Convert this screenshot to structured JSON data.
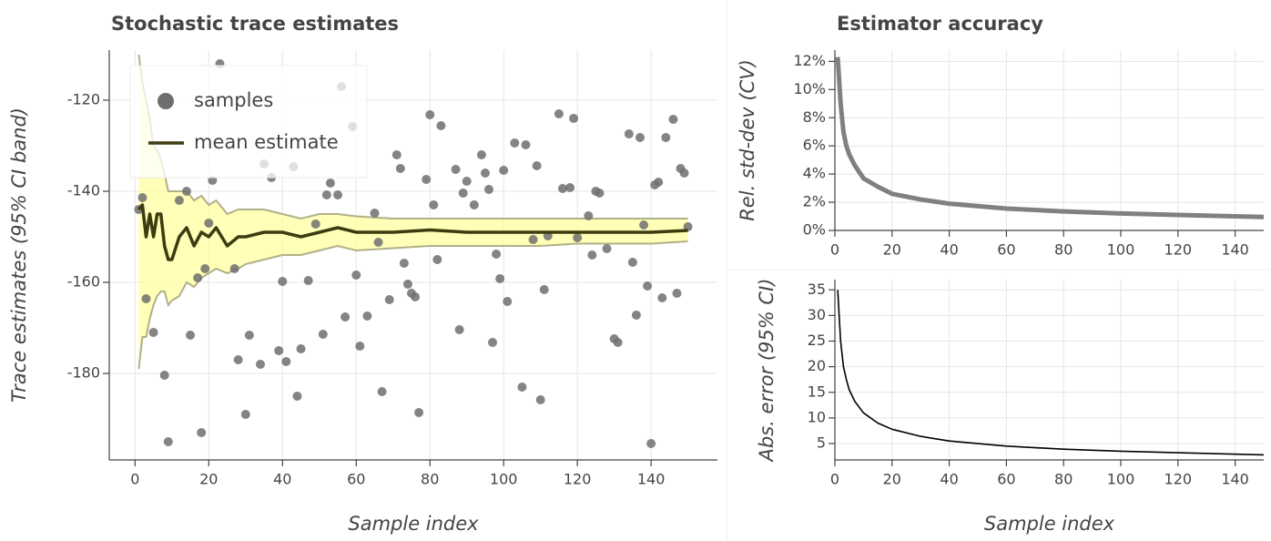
{
  "chart_data": [
    {
      "type": "scatter",
      "title": "Stochastic trace estimates",
      "xlabel": "Sample index",
      "ylabel": "Trace estimates (95% CI band)",
      "xlim": [
        -7,
        158
      ],
      "ylim": [
        -199,
        -109
      ],
      "xticks": [
        0,
        20,
        40,
        60,
        80,
        100,
        120,
        140
      ],
      "yticks": [
        -180,
        -160,
        -140,
        -120
      ],
      "grid": true,
      "legend": "top_left",
      "series": [
        {
          "name": "samples",
          "color": "#6e6e6e",
          "x": [
            1,
            2,
            3,
            5,
            8,
            9,
            12,
            14,
            15,
            17,
            18,
            19,
            20,
            21,
            23,
            27,
            28,
            30,
            31,
            34,
            35,
            37,
            39,
            40,
            41,
            43,
            44,
            45,
            47,
            49,
            51,
            52,
            53,
            55,
            56,
            57,
            59,
            60,
            61,
            63,
            65,
            66,
            67,
            69,
            71,
            72,
            73,
            74,
            75,
            76,
            77,
            79,
            80,
            81,
            82,
            83,
            87,
            88,
            89,
            90,
            92,
            94,
            95,
            96,
            97,
            98,
            99,
            100,
            101,
            103,
            105,
            106,
            108,
            109,
            110,
            111,
            112,
            115,
            116,
            118,
            119,
            120,
            123,
            124,
            125,
            126,
            128,
            130,
            131,
            134,
            135,
            136,
            137,
            138,
            139,
            140,
            141,
            142,
            143,
            144,
            146,
            147,
            148,
            149,
            150
          ],
          "values": [
            -144,
            -141.4,
            -163.6,
            -171,
            -180.4,
            -195,
            -142,
            -140,
            -171.6,
            -159,
            -193,
            -157,
            -147,
            -137.6,
            -112,
            -157,
            -177,
            -189,
            -171.6,
            -178,
            -134,
            -137,
            -175,
            -159.8,
            -177.4,
            -134.6,
            -185,
            -174.6,
            -159.6,
            -147.2,
            -171.4,
            -140.8,
            -138.2,
            -140.8,
            -117,
            -167.6,
            -125.8,
            -158.4,
            -174,
            -167.4,
            -144.8,
            -151.2,
            -184,
            -163.8,
            -132,
            -135,
            -155.8,
            -160.4,
            -162.4,
            -163.2,
            -188.6,
            -137.4,
            -123.2,
            -143,
            -155,
            -125.6,
            -135.2,
            -170.4,
            -140.4,
            -137.8,
            -143,
            -132,
            -136,
            -139.6,
            -173.2,
            -153.8,
            -159.2,
            -135.4,
            -164.2,
            -129.4,
            -183,
            -129.8,
            -150.6,
            -134.4,
            -185.8,
            -161.6,
            -149.8,
            -123,
            -139.4,
            -139.2,
            -124,
            -150.2,
            -145.4,
            -154,
            -140,
            -140.4,
            -152.6,
            -172.4,
            -173.2,
            -127.4,
            -155.6,
            -167.2,
            -128.2,
            -147.4,
            -160.8,
            -195.4,
            -138.6,
            -138,
            -163.4,
            -128.2,
            -124.2,
            -162.4,
            -135,
            -136,
            -147.8
          ]
        },
        {
          "name": "mean estimate",
          "color": "#3d3c10",
          "band_color": "#ffff99",
          "band_edge": "#b0b08a",
          "x": [
            1,
            2,
            3,
            4,
            5,
            6,
            7,
            8,
            9,
            10,
            12,
            14,
            16,
            18,
            20,
            22,
            25,
            28,
            30,
            35,
            40,
            45,
            50,
            55,
            60,
            70,
            80,
            90,
            100,
            110,
            120,
            130,
            140,
            150
          ],
          "values": [
            -144,
            -143,
            -150,
            -145,
            -150,
            -145,
            -145,
            -152,
            -155,
            -155,
            -150,
            -148,
            -152,
            -149,
            -150,
            -148,
            -152,
            -150,
            -150,
            -149,
            -149,
            -150,
            -149,
            -148,
            -149,
            -149,
            -148.5,
            -149,
            -149,
            -149,
            -149,
            -149,
            -149,
            -148.6
          ],
          "band_upper": [
            -110,
            -116,
            -120,
            -124,
            -130,
            -131,
            -133,
            -136,
            -140,
            -140,
            -140,
            -140,
            -142,
            -141,
            -143,
            -142,
            -145,
            -144,
            -144,
            -144,
            -145,
            -146,
            -145,
            -145,
            -145.5,
            -146,
            -146,
            -146,
            -146,
            -146,
            -146,
            -146,
            -146,
            -146
          ],
          "band_lower": [
            -179,
            -172,
            -172,
            -168,
            -165,
            -163,
            -162,
            -162,
            -165,
            -164,
            -163,
            -160,
            -161,
            -159,
            -158,
            -157,
            -158,
            -157,
            -156,
            -155,
            -154,
            -154,
            -153,
            -152,
            -153,
            -152.5,
            -152,
            -152,
            -152,
            -152,
            -151.5,
            -151.5,
            -151.5,
            -151
          ]
        }
      ]
    },
    {
      "type": "line",
      "title": "Estimator accuracy",
      "ylabel": "Rel. std-dev (CV)",
      "color": "#808080",
      "xlim": [
        0,
        150
      ],
      "ylim": [
        0,
        12.8
      ],
      "xticks": [
        0,
        20,
        40,
        60,
        80,
        100,
        120,
        140
      ],
      "yticks": [
        {
          "value": 0,
          "label": "0%"
        },
        {
          "value": 2,
          "label": "2%"
        },
        {
          "value": 4,
          "label": "4%"
        },
        {
          "value": 6,
          "label": "6%"
        },
        {
          "value": 8,
          "label": "8%"
        },
        {
          "value": 10,
          "label": "10%"
        },
        {
          "value": 12,
          "label": "12%"
        }
      ],
      "grid": true,
      "x": [
        1,
        2,
        3,
        4,
        5,
        7,
        10,
        15,
        20,
        30,
        40,
        60,
        80,
        100,
        120,
        150
      ],
      "values": [
        12.3,
        9,
        7,
        6,
        5.4,
        4.6,
        3.7,
        3.1,
        2.6,
        2.2,
        1.9,
        1.55,
        1.35,
        1.2,
        1.1,
        0.95
      ]
    },
    {
      "type": "line",
      "xlabel": "Sample index",
      "ylabel": "Abs. error (95% CI)",
      "color": "#000000",
      "xlim": [
        0,
        150
      ],
      "ylim": [
        1.8,
        37
      ],
      "xticks": [
        0,
        20,
        40,
        60,
        80,
        100,
        120,
        140
      ],
      "yticks": [
        5,
        10,
        15,
        20,
        25,
        30,
        35
      ],
      "grid": true,
      "x": [
        1,
        2,
        3,
        4,
        5,
        7,
        10,
        15,
        20,
        30,
        40,
        60,
        80,
        100,
        120,
        150
      ],
      "values": [
        35,
        25,
        20,
        17.5,
        15.5,
        13.2,
        11,
        9,
        7.8,
        6.4,
        5.5,
        4.5,
        3.9,
        3.5,
        3.2,
        2.8
      ]
    }
  ]
}
